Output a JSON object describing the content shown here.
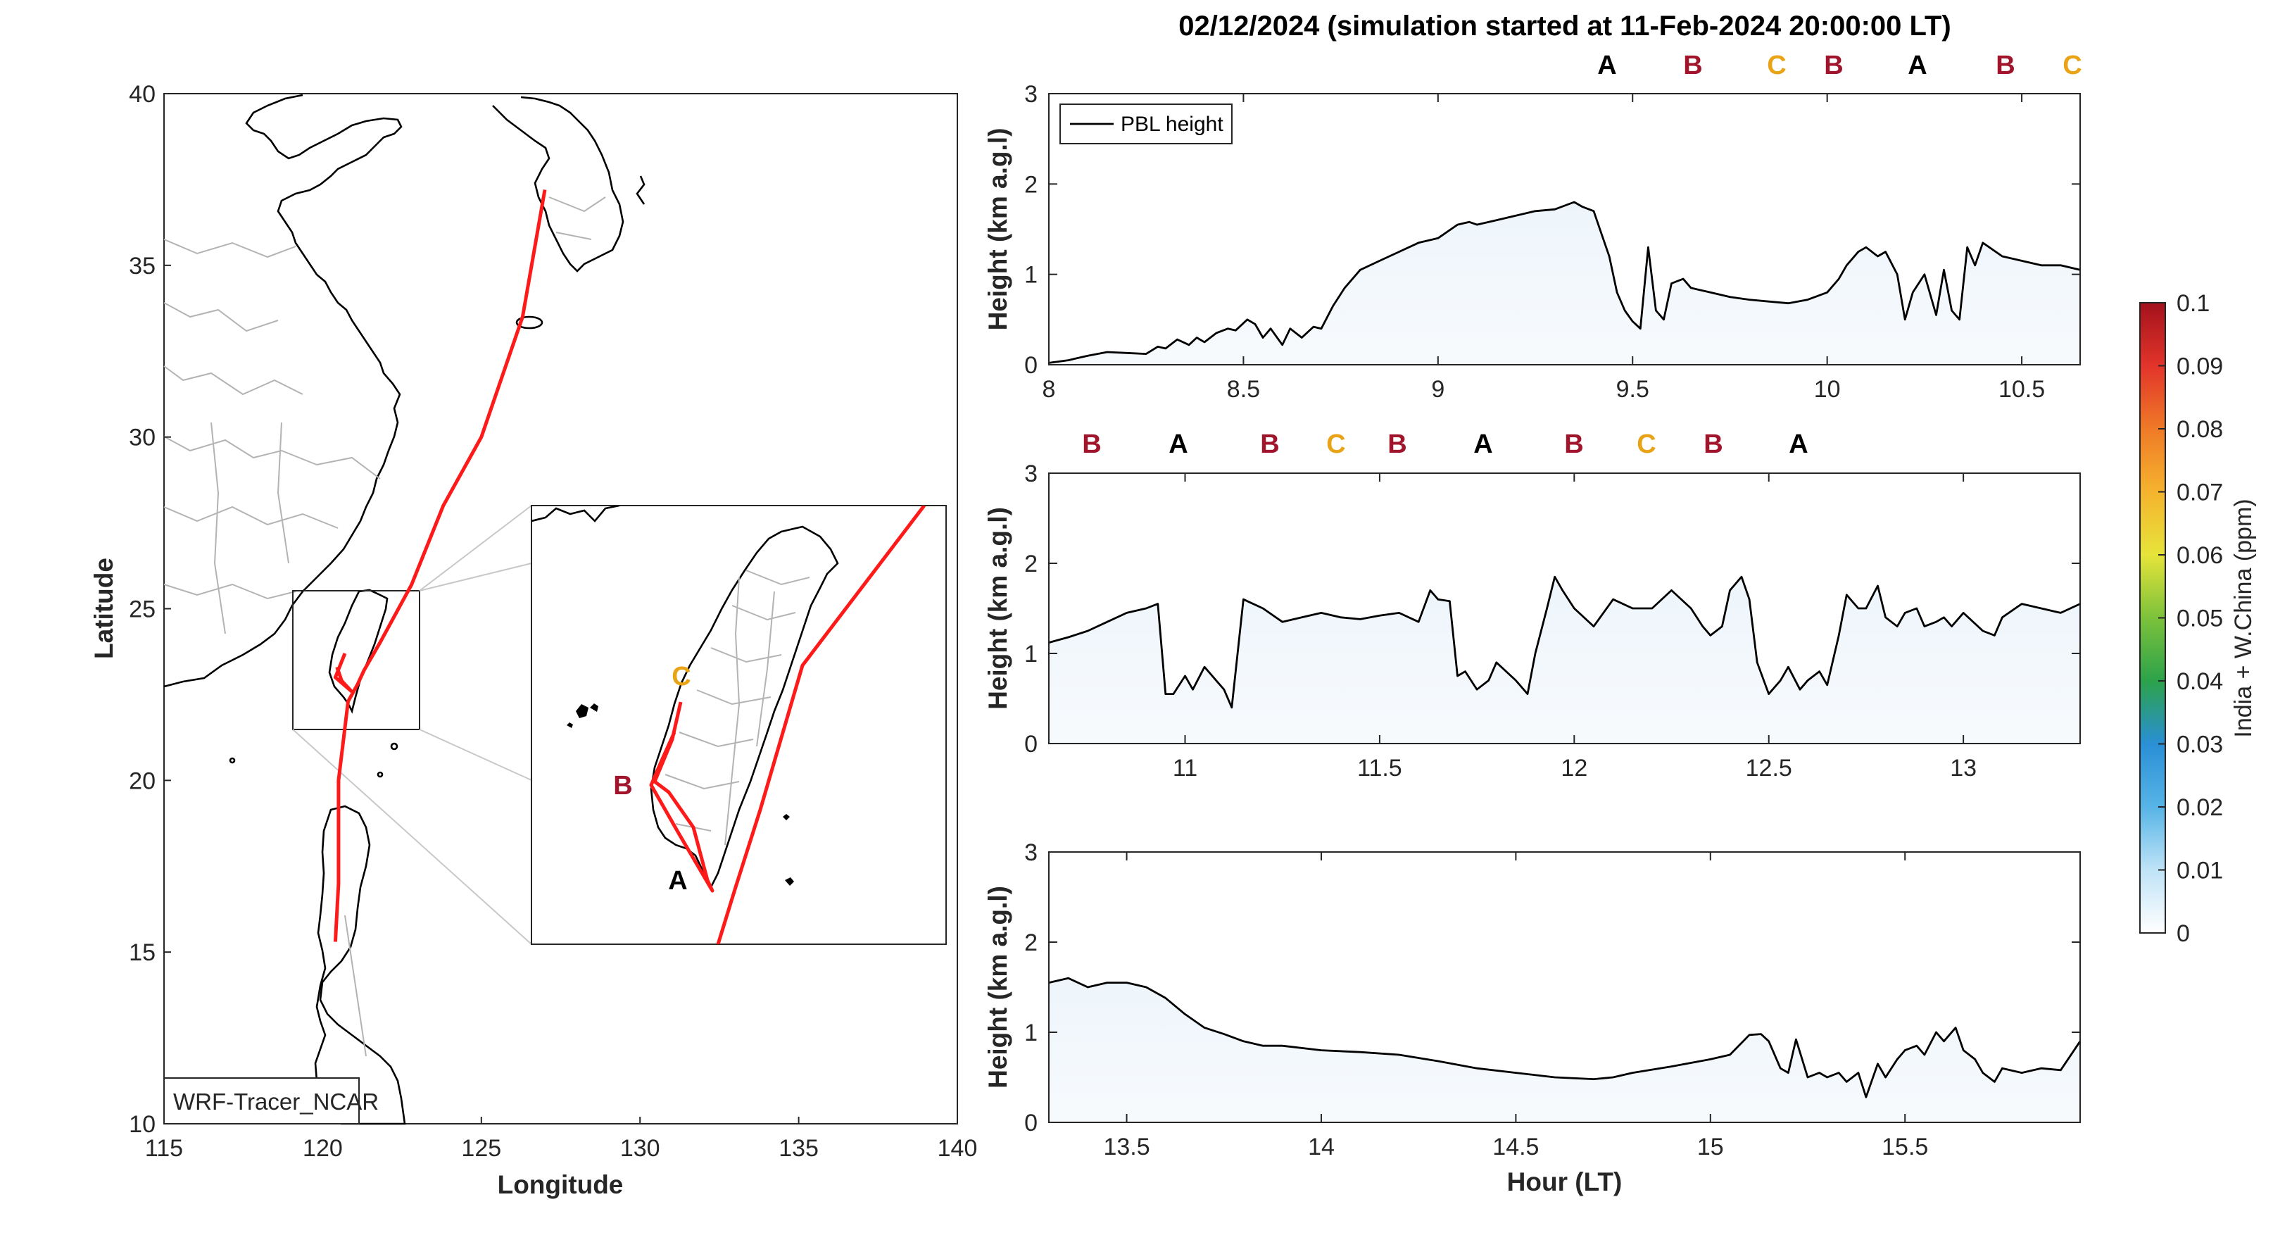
{
  "figure": {
    "title": "02/12/2024 (simulation started at 11-Feb-2024 20:00:00 LT)"
  },
  "colors": {
    "track": "#ff1a1a",
    "A": "#000000",
    "B": "#a0142c",
    "C": "#e8a317",
    "pbl": "#000000",
    "land_outline": "#000000",
    "province_lines": "#b3b3b3"
  },
  "chart_data": [
    {
      "type": "map",
      "xlabel": "Longitude",
      "ylabel": "Latitude",
      "xlim": [
        115,
        140
      ],
      "ylim": [
        10,
        40
      ],
      "xticks": [
        "115",
        "120",
        "125",
        "130",
        "135",
        "140"
      ],
      "yticks": [
        "10",
        "15",
        "20",
        "25",
        "30",
        "35",
        "40"
      ],
      "label_box": "WRF-Tracer_NCAR",
      "inset_region": {
        "lon": [
          119,
          123
        ],
        "lat": [
          21.5,
          25.5
        ]
      },
      "track": [
        {
          "lon": 127.0,
          "lat": 37.2
        },
        {
          "lon": 126.3,
          "lat": 33.5
        },
        {
          "lon": 125.0,
          "lat": 30.0
        },
        {
          "lon": 123.8,
          "lat": 28.0
        },
        {
          "lon": 122.8,
          "lat": 25.7
        },
        {
          "lon": 121.8,
          "lat": 24.0
        },
        {
          "lon": 121.3,
          "lat": 23.2
        },
        {
          "lon": 121.1,
          "lat": 22.8
        },
        {
          "lon": 120.8,
          "lat": 22.3
        },
        {
          "lon": 120.5,
          "lat": 20.0
        },
        {
          "lon": 120.5,
          "lat": 17.0
        },
        {
          "lon": 120.4,
          "lat": 15.3
        }
      ],
      "track_taiwan": [
        {
          "lon": 120.7,
          "lat": 23.7
        },
        {
          "lon": 120.4,
          "lat": 23.0
        },
        {
          "lon": 120.9,
          "lat": 22.6
        },
        {
          "lon": 120.6,
          "lat": 22.9
        },
        {
          "lon": 120.45,
          "lat": 23.3
        }
      ],
      "inset_labels": [
        {
          "label": "C",
          "class": "C"
        },
        {
          "label": "B",
          "class": "B"
        },
        {
          "label": "A",
          "class": "A"
        }
      ]
    },
    {
      "type": "line",
      "ylabel": "Height (km a.g.l)",
      "xlim": [
        8.0,
        10.65
      ],
      "ylim": [
        0,
        3
      ],
      "xticks": [
        "8",
        "8.5",
        "9",
        "9.5",
        "10",
        "10.5"
      ],
      "yticks": [
        "0",
        "1",
        "2",
        "3"
      ],
      "legend": "PBL height",
      "source_labels": [
        "A",
        "B",
        "C",
        "B",
        "A",
        "B",
        "C"
      ],
      "series": [
        {
          "name": "PBL height",
          "x": [
            8.0,
            8.05,
            8.1,
            8.15,
            8.2,
            8.25,
            8.28,
            8.3,
            8.33,
            8.36,
            8.38,
            8.4,
            8.43,
            8.46,
            8.48,
            8.51,
            8.53,
            8.55,
            8.57,
            8.6,
            8.62,
            8.65,
            8.68,
            8.7,
            8.73,
            8.76,
            8.8,
            8.85,
            8.9,
            8.95,
            9.0,
            9.05,
            9.08,
            9.1,
            9.15,
            9.2,
            9.25,
            9.3,
            9.35,
            9.37,
            9.4,
            9.42,
            9.44,
            9.46,
            9.48,
            9.5,
            9.52,
            9.54,
            9.56,
            9.58,
            9.6,
            9.63,
            9.65,
            9.7,
            9.75,
            9.8,
            9.85,
            9.9,
            9.95,
            10.0,
            10.03,
            10.05,
            10.08,
            10.1,
            10.13,
            10.15,
            10.18,
            10.2,
            10.22,
            10.25,
            10.28,
            10.3,
            10.32,
            10.34,
            10.36,
            10.38,
            10.4,
            10.45,
            10.5,
            10.55,
            10.6,
            10.65
          ],
          "y": [
            0.02,
            0.05,
            0.1,
            0.14,
            0.13,
            0.12,
            0.2,
            0.18,
            0.28,
            0.22,
            0.3,
            0.25,
            0.35,
            0.4,
            0.38,
            0.5,
            0.45,
            0.3,
            0.4,
            0.22,
            0.4,
            0.3,
            0.42,
            0.4,
            0.65,
            0.85,
            1.05,
            1.15,
            1.25,
            1.35,
            1.4,
            1.55,
            1.58,
            1.55,
            1.6,
            1.65,
            1.7,
            1.72,
            1.8,
            1.75,
            1.7,
            1.45,
            1.2,
            0.8,
            0.6,
            0.48,
            0.4,
            1.3,
            0.6,
            0.5,
            0.9,
            0.95,
            0.85,
            0.8,
            0.75,
            0.72,
            0.7,
            0.68,
            0.72,
            0.8,
            0.95,
            1.1,
            1.25,
            1.3,
            1.2,
            1.25,
            1.0,
            0.5,
            0.8,
            1.0,
            0.55,
            1.05,
            0.6,
            0.5,
            1.3,
            1.1,
            1.35,
            1.2,
            1.15,
            1.1,
            1.1,
            1.05
          ]
        }
      ]
    },
    {
      "type": "line",
      "ylabel": "Height (km a.g.l)",
      "xlim": [
        10.65,
        13.3
      ],
      "ylim": [
        0,
        3
      ],
      "xticks": [
        "11",
        "11.5",
        "12",
        "12.5",
        "13"
      ],
      "yticks": [
        "0",
        "1",
        "2",
        "3"
      ],
      "source_labels": [
        "B",
        "A",
        "B",
        "C",
        "B",
        "A",
        "B",
        "C",
        "B",
        "A"
      ],
      "series": [
        {
          "name": "PBL height",
          "x": [
            10.65,
            10.7,
            10.75,
            10.8,
            10.85,
            10.9,
            10.93,
            10.95,
            10.97,
            11.0,
            11.02,
            11.05,
            11.08,
            11.1,
            11.12,
            11.15,
            11.2,
            11.25,
            11.3,
            11.35,
            11.4,
            11.45,
            11.5,
            11.55,
            11.6,
            11.63,
            11.65,
            11.68,
            11.7,
            11.72,
            11.75,
            11.78,
            11.8,
            11.85,
            11.88,
            11.9,
            11.93,
            11.95,
            11.97,
            12.0,
            12.05,
            12.1,
            12.15,
            12.2,
            12.25,
            12.3,
            12.33,
            12.35,
            12.38,
            12.4,
            12.43,
            12.45,
            12.47,
            12.5,
            12.53,
            12.55,
            12.58,
            12.6,
            12.63,
            12.65,
            12.68,
            12.7,
            12.73,
            12.75,
            12.78,
            12.8,
            12.83,
            12.85,
            12.88,
            12.9,
            12.93,
            12.95,
            12.97,
            13.0,
            13.05,
            13.08,
            13.1,
            13.15,
            13.2,
            13.25,
            13.3
          ],
          "y": [
            1.12,
            1.18,
            1.25,
            1.35,
            1.45,
            1.5,
            1.55,
            0.55,
            0.55,
            0.75,
            0.6,
            0.85,
            0.7,
            0.6,
            0.4,
            1.6,
            1.5,
            1.35,
            1.4,
            1.45,
            1.4,
            1.38,
            1.42,
            1.45,
            1.35,
            1.7,
            1.6,
            1.58,
            0.75,
            0.8,
            0.6,
            0.7,
            0.9,
            0.7,
            0.55,
            1.0,
            1.5,
            1.85,
            1.7,
            1.5,
            1.3,
            1.6,
            1.5,
            1.5,
            1.7,
            1.5,
            1.3,
            1.2,
            1.3,
            1.7,
            1.85,
            1.6,
            0.9,
            0.55,
            0.7,
            0.85,
            0.6,
            0.7,
            0.8,
            0.65,
            1.2,
            1.65,
            1.5,
            1.5,
            1.75,
            1.4,
            1.3,
            1.45,
            1.5,
            1.3,
            1.35,
            1.4,
            1.3,
            1.45,
            1.25,
            1.2,
            1.4,
            1.55,
            1.5,
            1.45,
            1.55
          ]
        }
      ]
    },
    {
      "type": "line",
      "ylabel": "Height (km a.g.l)",
      "xlabel": "Hour (LT)",
      "xlim": [
        13.3,
        15.95
      ],
      "ylim": [
        0,
        3
      ],
      "xticks": [
        "13.5",
        "14",
        "14.5",
        "15",
        "15.5"
      ],
      "yticks": [
        "0",
        "1",
        "2",
        "3"
      ],
      "series": [
        {
          "name": "PBL height",
          "x": [
            13.3,
            13.35,
            13.4,
            13.45,
            13.5,
            13.55,
            13.6,
            13.65,
            13.7,
            13.75,
            13.8,
            13.85,
            13.9,
            14.0,
            14.1,
            14.2,
            14.3,
            14.4,
            14.5,
            14.6,
            14.7,
            14.75,
            14.8,
            14.9,
            15.0,
            15.05,
            15.1,
            15.13,
            15.15,
            15.18,
            15.2,
            15.22,
            15.25,
            15.28,
            15.3,
            15.33,
            15.35,
            15.38,
            15.4,
            15.43,
            15.45,
            15.48,
            15.5,
            15.53,
            15.55,
            15.58,
            15.6,
            15.63,
            15.65,
            15.68,
            15.7,
            15.73,
            15.75,
            15.8,
            15.85,
            15.9,
            15.95
          ],
          "y": [
            1.55,
            1.6,
            1.5,
            1.55,
            1.55,
            1.5,
            1.38,
            1.2,
            1.05,
            0.98,
            0.9,
            0.85,
            0.85,
            0.8,
            0.78,
            0.75,
            0.68,
            0.6,
            0.55,
            0.5,
            0.48,
            0.5,
            0.55,
            0.62,
            0.7,
            0.75,
            0.97,
            0.98,
            0.9,
            0.6,
            0.55,
            0.92,
            0.5,
            0.55,
            0.5,
            0.55,
            0.45,
            0.55,
            0.28,
            0.65,
            0.5,
            0.7,
            0.8,
            0.85,
            0.75,
            1.0,
            0.9,
            1.05,
            0.8,
            0.7,
            0.55,
            0.45,
            0.6,
            0.55,
            0.6,
            0.58,
            0.9
          ]
        }
      ]
    },
    {
      "type": "colorbar",
      "label": "India + W.China (ppm)",
      "range": [
        0,
        0.1
      ],
      "ticks": [
        "0",
        "0.01",
        "0.02",
        "0.03",
        "0.04",
        "0.05",
        "0.06",
        "0.07",
        "0.08",
        "0.09",
        "0.1"
      ],
      "colormap": [
        "#ffffff",
        "#bfe3f7",
        "#57b4e6",
        "#2a8fd6",
        "#2ca24a",
        "#7cc23b",
        "#e6e43a",
        "#f5b32e",
        "#ef7a27",
        "#e2342a",
        "#a3121c"
      ]
    }
  ]
}
